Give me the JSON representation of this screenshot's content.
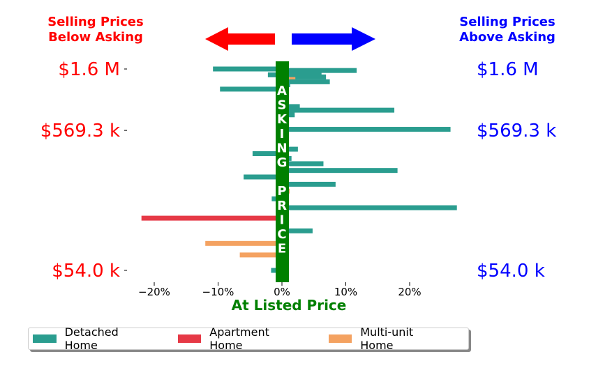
{
  "header": {
    "left_line1": "Selling Prices",
    "left_line2": "Below Asking",
    "right_line1": "Selling Prices",
    "right_line2": "Above Asking"
  },
  "colors": {
    "below": "#ff0000",
    "above": "#0000ff",
    "center": "#008000",
    "detached": "#2a9d8f",
    "apartment": "#e63946",
    "multiunit": "#f4a261"
  },
  "chart_data": {
    "type": "bar",
    "orientation": "horizontal",
    "center_label": "ASKING PRICE",
    "xlabel": "At Listed Price",
    "x_ticks": [
      "−20%",
      "−10%",
      "0%",
      "10%",
      "20%"
    ],
    "x_tick_values": [
      -20,
      -10,
      0,
      10,
      20
    ],
    "xlim": [
      -22,
      28
    ],
    "y_ticks_left": [
      "$1.6 M",
      "$569.3 k",
      "$54.0 k"
    ],
    "y_ticks_right": [
      "$1.6 M",
      "$569.3 k",
      "$54.0 k"
    ],
    "y_tick_values": [
      1600000,
      569300,
      54000
    ],
    "bars": [
      {
        "price": 1600000,
        "pct": -10.8,
        "type": "Detached Home"
      },
      {
        "price": 1560000,
        "pct": 11.7,
        "type": "Detached Home"
      },
      {
        "price": 1500000,
        "pct": 6.2,
        "type": "Detached Home"
      },
      {
        "price": 1450000,
        "pct": -2.2,
        "type": "Detached Home"
      },
      {
        "price": 1400000,
        "pct": 6.9,
        "type": "Detached Home"
      },
      {
        "price": 1340000,
        "pct": 2.1,
        "type": "Multi-unit Home"
      },
      {
        "price": 1290000,
        "pct": 7.5,
        "type": "Detached Home"
      },
      {
        "price": 1230000,
        "pct": 1.3,
        "type": "Detached Home"
      },
      {
        "price": 1140000,
        "pct": -9.7,
        "type": "Detached Home"
      },
      {
        "price": 1110000,
        "pct": 1.1,
        "type": "Detached Home"
      },
      {
        "price": 850000,
        "pct": 2.8,
        "type": "Detached Home"
      },
      {
        "price": 800000,
        "pct": 17.6,
        "type": "Detached Home"
      },
      {
        "price": 740000,
        "pct": 2.0,
        "type": "Detached Home"
      },
      {
        "price": 580000,
        "pct": 26.4,
        "type": "Detached Home"
      },
      {
        "price": 415000,
        "pct": 2.5,
        "type": "Detached Home"
      },
      {
        "price": 385000,
        "pct": -4.6,
        "type": "Detached Home"
      },
      {
        "price": 355000,
        "pct": 1.5,
        "type": "Detached Home"
      },
      {
        "price": 325000,
        "pct": 6.5,
        "type": "Detached Home"
      },
      {
        "price": 290000,
        "pct": 18.1,
        "type": "Detached Home"
      },
      {
        "price": 260000,
        "pct": -6.0,
        "type": "Detached Home"
      },
      {
        "price": 230000,
        "pct": 8.4,
        "type": "Detached Home"
      },
      {
        "price": 205000,
        "pct": 1.2,
        "type": "Multi-unit Home"
      },
      {
        "price": 180000,
        "pct": -1.6,
        "type": "Detached Home"
      },
      {
        "price": 155000,
        "pct": 27.4,
        "type": "Detached Home"
      },
      {
        "price": 130000,
        "pct": -22.0,
        "type": "Apartment Home"
      },
      {
        "price": 105000,
        "pct": 4.8,
        "type": "Detached Home"
      },
      {
        "price": 85000,
        "pct": -12.0,
        "type": "Multi-unit Home"
      },
      {
        "price": 70000,
        "pct": -6.6,
        "type": "Multi-unit Home"
      },
      {
        "price": 54000,
        "pct": -1.7,
        "type": "Detached Home"
      }
    ],
    "legend": [
      "Detached Home",
      "Apartment Home",
      "Multi-unit Home"
    ],
    "legend_placement": "bottom",
    "grid": false
  }
}
